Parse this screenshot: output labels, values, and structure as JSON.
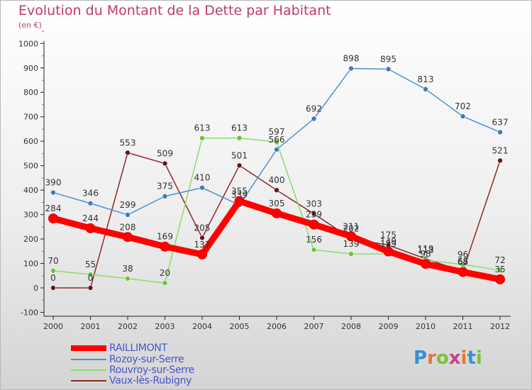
{
  "title": "Evolution du Montant de la Dette par Habitant",
  "subtitle": "(en €)",
  "logo": {
    "text": "Proxiti",
    "letter_colors": [
      "#3a8fd6",
      "#e8762b",
      "#7bbf3a",
      "#d13b8a",
      "#e8762b",
      "#3a8fd6",
      "#7bbf3a"
    ]
  },
  "chart_data": {
    "type": "line",
    "title": "Evolution du Montant de la Dette par Habitant",
    "subtitle": "(en €)",
    "x": [
      "2000",
      "2001",
      "2002",
      "2003",
      "2004",
      "2005",
      "2006",
      "2007",
      "2008",
      "2009",
      "2010",
      "2011",
      "2012"
    ],
    "ylim": [
      -100,
      1000
    ],
    "yticks": [
      "-100",
      "0",
      "100",
      "200",
      "300",
      "400",
      "500",
      "600",
      "700",
      "800",
      "900",
      "1000"
    ],
    "grid": false,
    "legend_position": "bottom-left",
    "series": [
      {
        "name": "RAILLIMONT",
        "color": "#ff0000",
        "bold": true,
        "values": [
          284,
          244,
          208,
          169,
          137,
          355,
          305,
          259,
          211,
          149,
          98,
          65,
          35
        ],
        "labels": [
          "284",
          "244",
          "208",
          "169",
          "137",
          "355",
          "305",
          "259",
          "211",
          "149",
          "98",
          "65",
          "35"
        ]
      },
      {
        "name": "Rozoy-sur-Serre",
        "color": "#4f8fcf",
        "marker": "#3a7cc2",
        "values": [
          390,
          346,
          299,
          375,
          410,
          339,
          566,
          692,
          898,
          895,
          813,
          702,
          637
        ],
        "labels": [
          "390",
          "346",
          "299",
          "375",
          "410",
          "339",
          "566",
          "692",
          "898",
          "895",
          "813",
          "702",
          "637"
        ]
      },
      {
        "name": "Rouvroy-sur-Serre",
        "color": "#88dd66",
        "marker": "#6cc23c",
        "values": [
          70,
          55,
          38,
          20,
          613,
          613,
          597,
          156,
          139,
          139,
          113,
          96,
          72
        ],
        "labels": [
          "70",
          "55",
          "38",
          "20",
          "613",
          "613",
          "597",
          "156",
          "139",
          "139",
          "113",
          "96",
          "72"
        ]
      },
      {
        "name": "Vaux-lès-Rubigny",
        "color": "#8b2a2a",
        "marker": "#6a1515",
        "values": [
          0,
          0,
          553,
          509,
          205,
          501,
          400,
          303,
          202,
          175,
          119,
          68,
          521
        ],
        "labels": [
          "0",
          "0",
          "553",
          "509",
          "205",
          "501",
          "400",
          "303",
          "202",
          "175",
          "119",
          "68",
          "521"
        ]
      }
    ]
  }
}
